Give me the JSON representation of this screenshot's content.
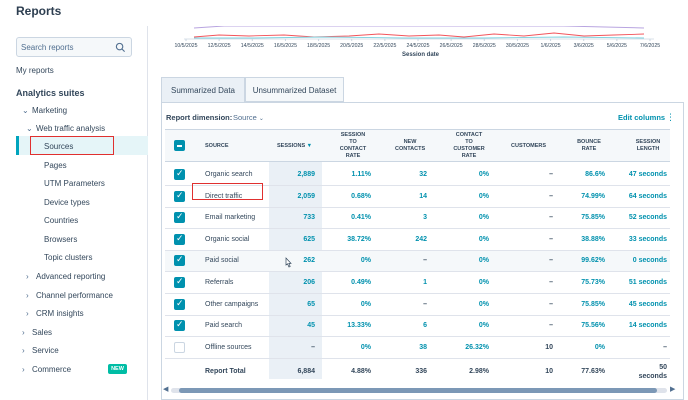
{
  "app": {
    "title": "Reports"
  },
  "sidebar": {
    "search": {
      "placeholder": "Search reports"
    },
    "my_reports": "My reports",
    "analytics_heading": "Analytics suites",
    "marketing": "Marketing",
    "web_traffic": "Web traffic analysis",
    "items": [
      "Sources",
      "Pages",
      "UTM Parameters",
      "Device types",
      "Countries",
      "Browsers",
      "Topic clusters"
    ],
    "advanced_reporting": "Advanced reporting",
    "channel_performance": "Channel performance",
    "crm_insights": "CRM insights",
    "sales": "Sales",
    "service": "Service",
    "commerce": "Commerce",
    "new_badge": "NEW"
  },
  "chart": {
    "x_ticks": [
      "10/5/2025",
      "12/5/2025",
      "14/5/2025",
      "16/5/2025",
      "18/5/2025",
      "20/5/2025",
      "22/5/2025",
      "24/5/2025",
      "26/5/2025",
      "28/5/2025",
      "30/5/2025",
      "1/6/2025",
      "3/6/2025",
      "5/6/2025",
      "7/6/2025"
    ],
    "x_label": "Session date",
    "colors": {
      "line1": "#b8a4e0",
      "line2": "#f2545b",
      "line3": "#7fd1de"
    }
  },
  "tabs": {
    "summarized": "Summarized Data",
    "unsummarized": "Unsummarized Dataset"
  },
  "toolbar": {
    "dimension_label": "Report dimension:",
    "dimension_value": "Source",
    "edit_columns": "Edit columns"
  },
  "table": {
    "headers": {
      "source": "SOURCE",
      "sessions": "SESSIONS",
      "session_to_contact": [
        "SESSION",
        "TO",
        "CONTACT",
        "RATE"
      ],
      "new_contacts": [
        "NEW",
        "CONTACTS"
      ],
      "contact_to_customer": [
        "CONTACT",
        "TO",
        "CUSTOMER",
        "RATE"
      ],
      "customers": "CUSTOMERS",
      "bounce_rate": [
        "BOUNCE",
        "RATE"
      ],
      "session_length": [
        "SESSION",
        "LENGTH"
      ]
    },
    "rows": [
      {
        "source": "Organic search",
        "sessions": "2,889",
        "s2c": "1.11%",
        "new_contacts": "32",
        "c2c": "0%",
        "customers": "–",
        "bounce": "86.6%",
        "length": "47 seconds",
        "checked": true
      },
      {
        "source": "Direct traffic",
        "sessions": "2,059",
        "s2c": "0.68%",
        "new_contacts": "14",
        "c2c": "0%",
        "customers": "–",
        "bounce": "74.99%",
        "length": "64 seconds",
        "checked": true
      },
      {
        "source": "Email marketing",
        "sessions": "733",
        "s2c": "0.41%",
        "new_contacts": "3",
        "c2c": "0%",
        "customers": "–",
        "bounce": "75.85%",
        "length": "52 seconds",
        "checked": true
      },
      {
        "source": "Organic social",
        "sessions": "625",
        "s2c": "38.72%",
        "new_contacts": "242",
        "c2c": "0%",
        "customers": "–",
        "bounce": "38.88%",
        "length": "33 seconds",
        "checked": true
      },
      {
        "source": "Paid social",
        "sessions": "262",
        "s2c": "0%",
        "new_contacts": "–",
        "c2c": "0%",
        "customers": "–",
        "bounce": "99.62%",
        "length": "0 seconds",
        "checked": true
      },
      {
        "source": "Referrals",
        "sessions": "206",
        "s2c": "0.49%",
        "new_contacts": "1",
        "c2c": "0%",
        "customers": "–",
        "bounce": "75.73%",
        "length": "51 seconds",
        "checked": true
      },
      {
        "source": "Other campaigns",
        "sessions": "65",
        "s2c": "0%",
        "new_contacts": "–",
        "c2c": "0%",
        "customers": "–",
        "bounce": "75.85%",
        "length": "45 seconds",
        "checked": true
      },
      {
        "source": "Paid search",
        "sessions": "45",
        "s2c": "13.33%",
        "new_contacts": "6",
        "c2c": "0%",
        "customers": "–",
        "bounce": "75.56%",
        "length": "14 seconds",
        "checked": true
      },
      {
        "source": "Offline sources",
        "sessions": "–",
        "s2c": "0%",
        "new_contacts": "38",
        "c2c": "26.32%",
        "customers": "10",
        "bounce": "0%",
        "length": "–",
        "checked": false
      }
    ],
    "total": {
      "label": "Report Total",
      "sessions": "6,884",
      "s2c": "4.88%",
      "new_contacts": "336",
      "c2c": "2.98%",
      "customers": "10",
      "bounce": "77.63%",
      "length_line1": "50",
      "length_line2": "seconds"
    }
  }
}
